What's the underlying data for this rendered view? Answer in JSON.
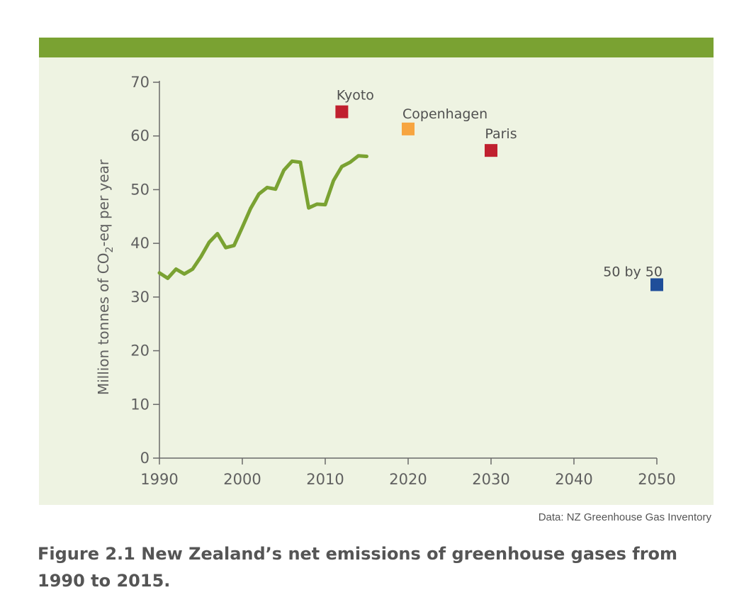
{
  "chart_data": {
    "type": "line",
    "ylabel_prefix": "Million tonnes of CO",
    "ylabel_subscript": "2",
    "ylabel_suffix": "-eq per year",
    "xlim": [
      1990,
      2050
    ],
    "ylim": [
      0,
      70
    ],
    "xticks": [
      1990,
      2000,
      2010,
      2020,
      2030,
      2040,
      2050
    ],
    "yticks": [
      0,
      10,
      20,
      30,
      40,
      50,
      60,
      70
    ],
    "grid": false,
    "series": [
      {
        "name": "Net emissions",
        "color": "#7aa232",
        "x": [
          1990,
          1991,
          1992,
          1993,
          1994,
          1995,
          1996,
          1997,
          1998,
          1999,
          2000,
          2001,
          2002,
          2003,
          2004,
          2005,
          2006,
          2007,
          2008,
          2009,
          2010,
          2011,
          2012,
          2013,
          2014,
          2015
        ],
        "y": [
          34.5,
          33.5,
          35.2,
          34.3,
          35.2,
          37.5,
          40.2,
          41.8,
          39.2,
          39.6,
          43,
          46.5,
          49.2,
          50.4,
          50.1,
          53.6,
          55.3,
          55.1,
          46.6,
          47.3,
          47.2,
          51.7,
          54.3,
          55.1,
          56.3,
          56.2
        ]
      }
    ],
    "targets": [
      {
        "label": "Kyoto",
        "x": 2012,
        "y": 64.5,
        "color": "#c0202f",
        "label_side": "above"
      },
      {
        "label": "Copenhagen",
        "x": 2020,
        "y": 61.3,
        "color": "#f7a541",
        "label_side": "above-right"
      },
      {
        "label": "Paris",
        "x": 2030,
        "y": 57.3,
        "color": "#c0202f",
        "label_side": "above"
      },
      {
        "label": "50 by 50",
        "x": 2050,
        "y": 32.3,
        "color": "#1f4e9a",
        "label_side": "above-left"
      }
    ]
  },
  "source": "Data: NZ Greenhouse Gas Inventory",
  "caption": "Figure 2.1 New Zealand’s net emissions of greenhouse gases from 1990 to 2015."
}
